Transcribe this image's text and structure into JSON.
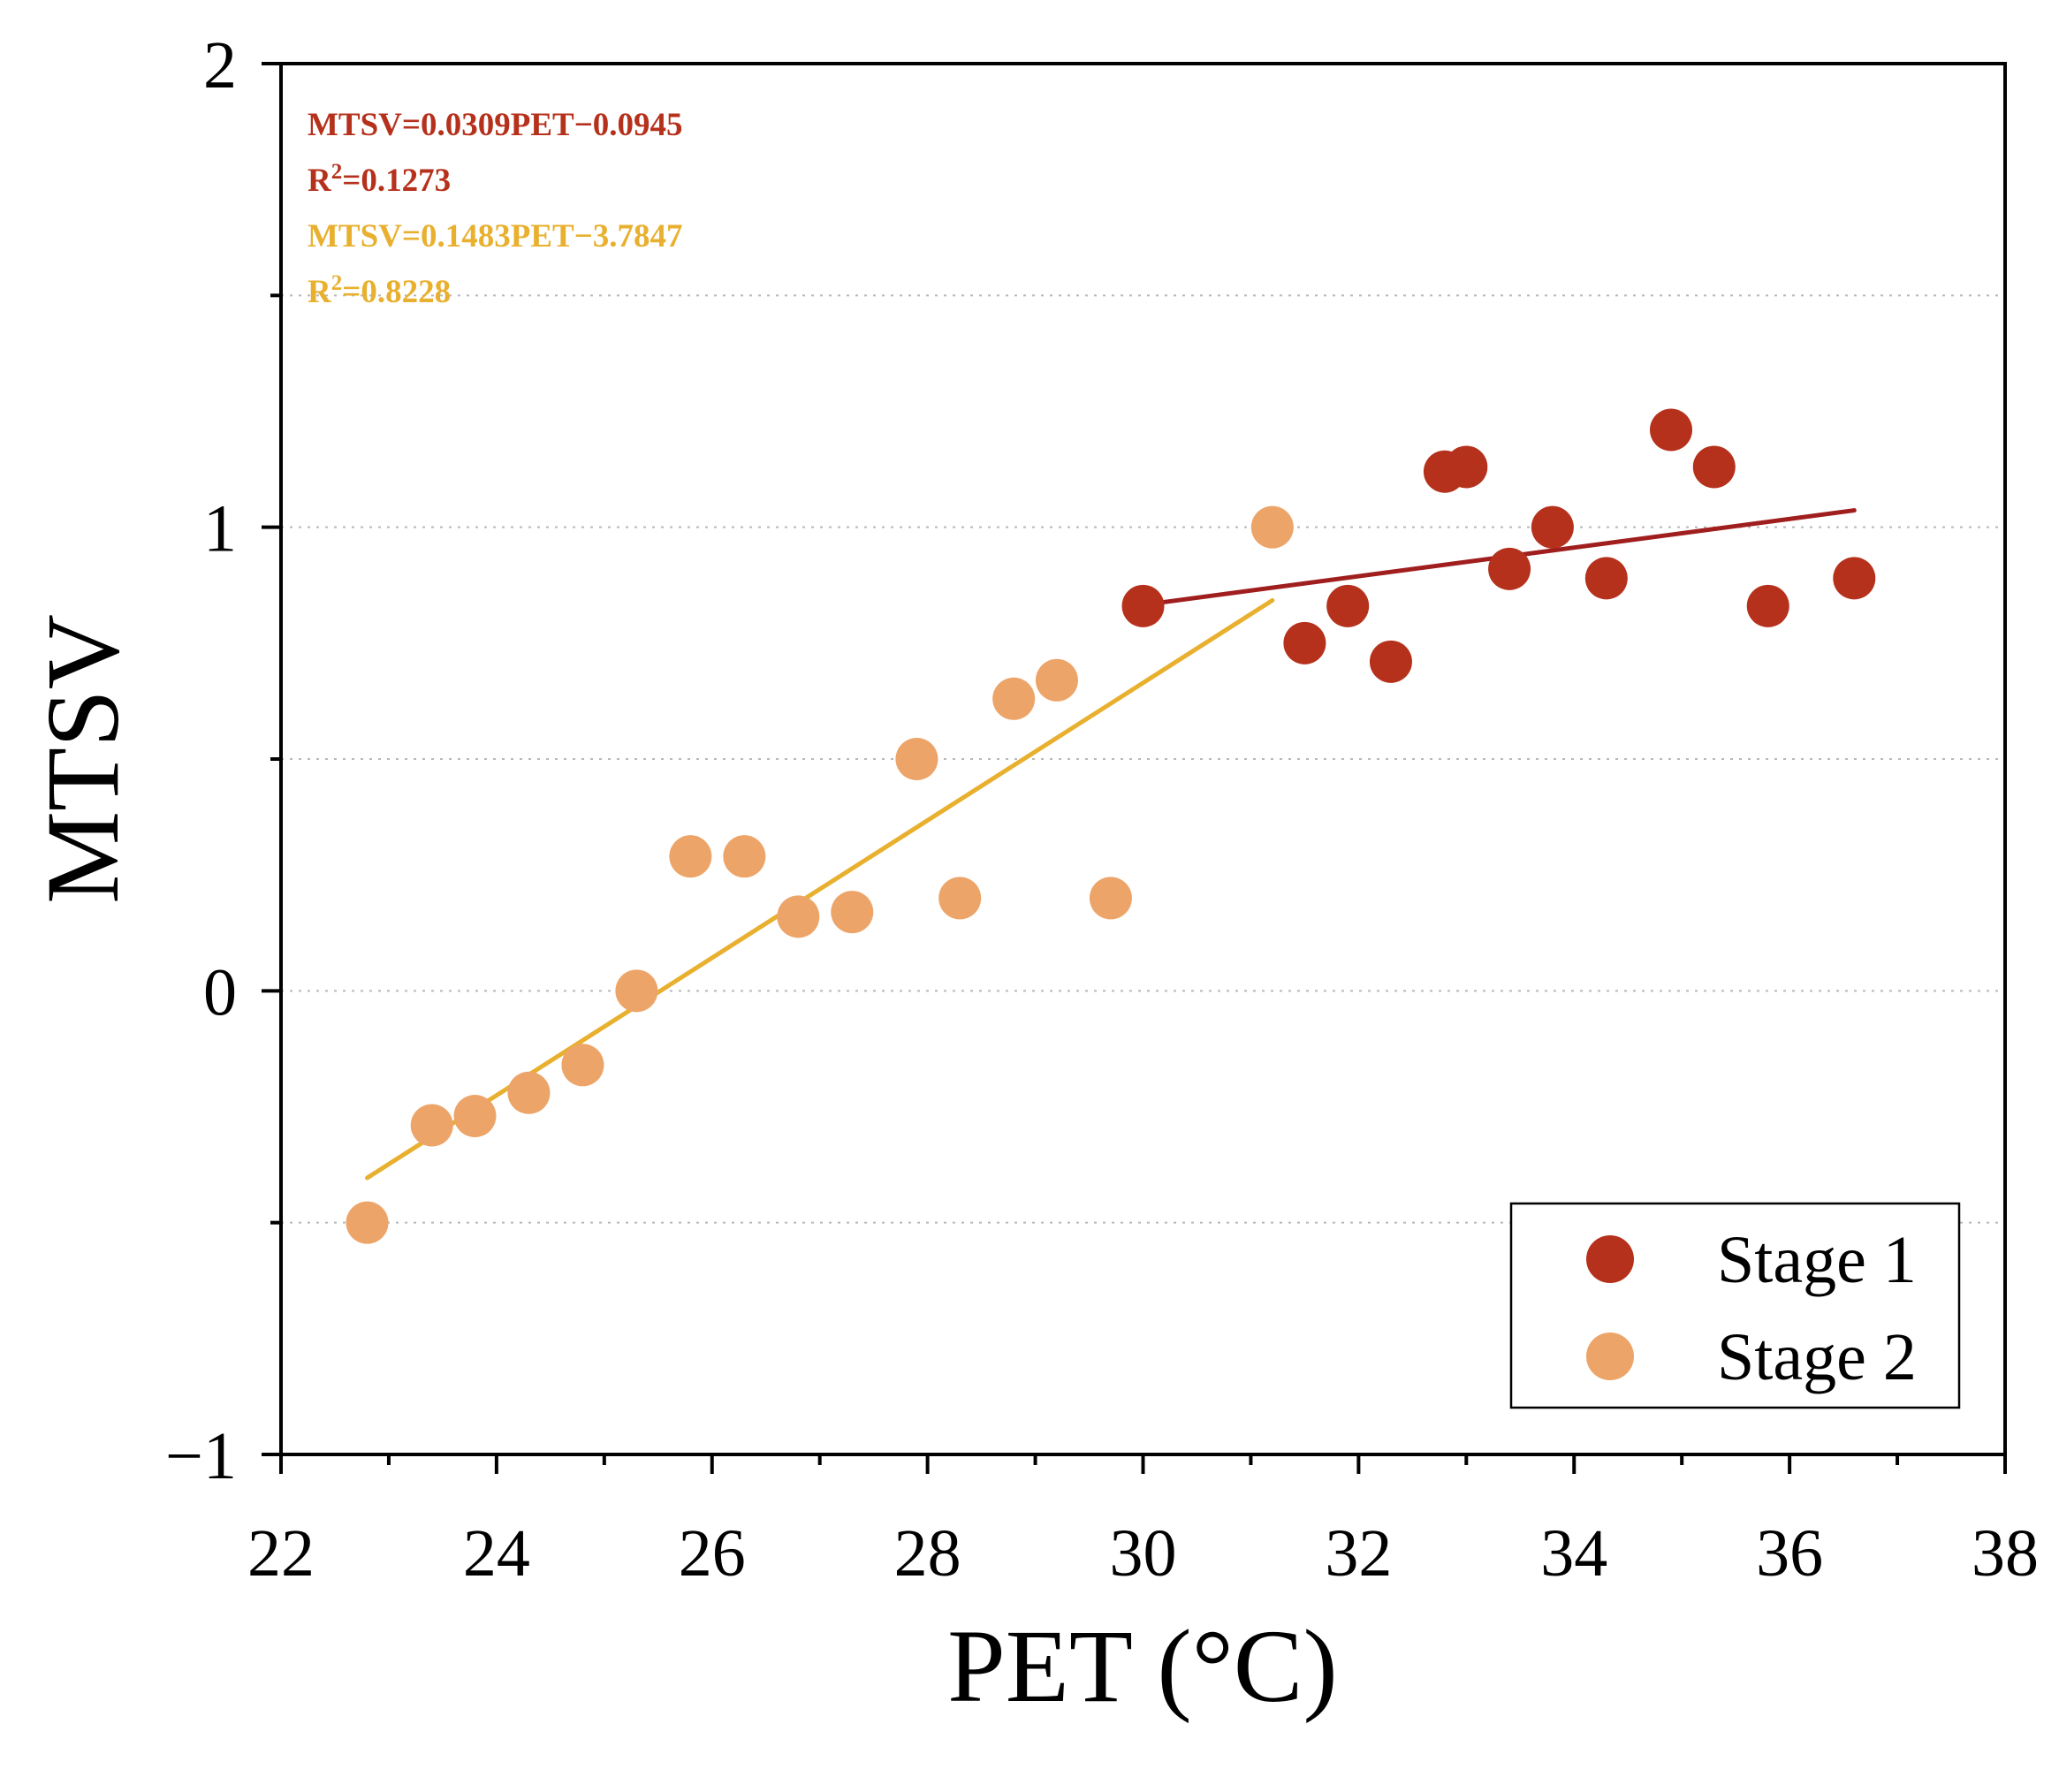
{
  "chart_data": {
    "type": "scatter",
    "xlabel": "PET (°C)",
    "ylabel": "MTSV",
    "xlim": [
      22,
      38
    ],
    "ylim": [
      -1,
      2
    ],
    "xticks": [
      "22",
      "24",
      "26",
      "28",
      "30",
      "32",
      "34",
      "36",
      "38"
    ],
    "yticks": [
      "−1",
      "0",
      "1",
      "2"
    ],
    "ytick_values": [
      -1,
      0,
      1,
      2
    ],
    "grid": "dotted horizontal at 0.5 steps",
    "legend_position": "bottom-right",
    "series": [
      {
        "name": "Stage 1",
        "color": "#b5311c",
        "points": [
          [
            30.0,
            0.83
          ],
          [
            31.5,
            0.75
          ],
          [
            31.9,
            0.83
          ],
          [
            32.3,
            0.71
          ],
          [
            32.8,
            1.12
          ],
          [
            33.0,
            1.13
          ],
          [
            33.4,
            0.91
          ],
          [
            33.8,
            1.0
          ],
          [
            34.3,
            0.89
          ],
          [
            34.9,
            1.21
          ],
          [
            35.3,
            1.13
          ],
          [
            35.8,
            0.83
          ],
          [
            36.6,
            0.89
          ]
        ],
        "fit": {
          "slope": 0.0309,
          "intercept": -0.0945,
          "x_range": [
            30.0,
            36.6
          ],
          "color": "#a01e1e"
        }
      },
      {
        "name": "Stage 2",
        "color": "#eda468",
        "points": [
          [
            22.8,
            -0.5
          ],
          [
            23.4,
            -0.29
          ],
          [
            23.8,
            -0.27
          ],
          [
            24.3,
            -0.22
          ],
          [
            24.8,
            -0.16
          ],
          [
            25.3,
            0.0
          ],
          [
            25.8,
            0.29
          ],
          [
            26.3,
            0.29
          ],
          [
            26.8,
            0.16
          ],
          [
            27.3,
            0.17
          ],
          [
            27.9,
            0.5
          ],
          [
            28.3,
            0.2
          ],
          [
            28.8,
            0.63
          ],
          [
            29.2,
            0.67
          ],
          [
            29.7,
            0.2
          ],
          [
            31.2,
            1.0
          ]
        ],
        "fit": {
          "slope": 0.1483,
          "intercept": -3.7847,
          "x_range": [
            22.8,
            31.2
          ],
          "color": "#e8b02e"
        }
      }
    ],
    "annotations": [
      {
        "text": "MTSV=0.0309PET−0.0945",
        "color": "#b5311c"
      },
      {
        "text": "R2=0.1273",
        "r_prefix": "R",
        "sup": "2",
        "value": "=0.1273",
        "color": "#b5311c"
      },
      {
        "text": "MTSV=0.1483PET−3.7847",
        "color": "#e8b02e"
      },
      {
        "text": "R2=0.8228",
        "r_prefix": "R",
        "sup": "2",
        "value": "=0.8228",
        "color": "#e8b02e"
      }
    ]
  }
}
